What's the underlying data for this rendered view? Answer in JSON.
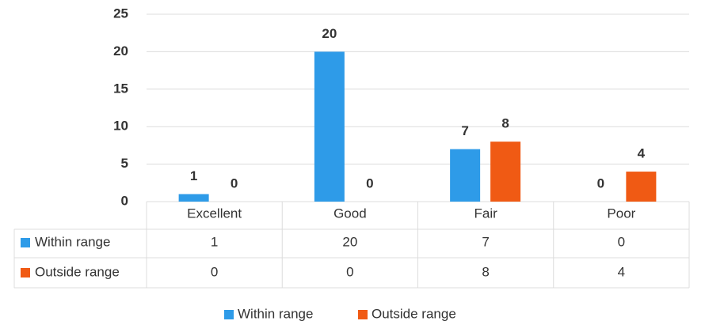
{
  "chart_data": {
    "type": "bar",
    "categories": [
      "Excellent",
      "Good",
      "Fair",
      "Poor"
    ],
    "series": [
      {
        "name": "Within range",
        "color": "#2e9be8",
        "values": [
          1,
          20,
          7,
          0
        ]
      },
      {
        "name": "Outside range",
        "color": "#f05a14",
        "values": [
          0,
          0,
          8,
          4
        ]
      }
    ],
    "ylim": [
      0,
      25
    ],
    "yticks": [
      0,
      5,
      10,
      15,
      20,
      25
    ],
    "grid": true,
    "data_table": true,
    "legend": "bottom"
  }
}
